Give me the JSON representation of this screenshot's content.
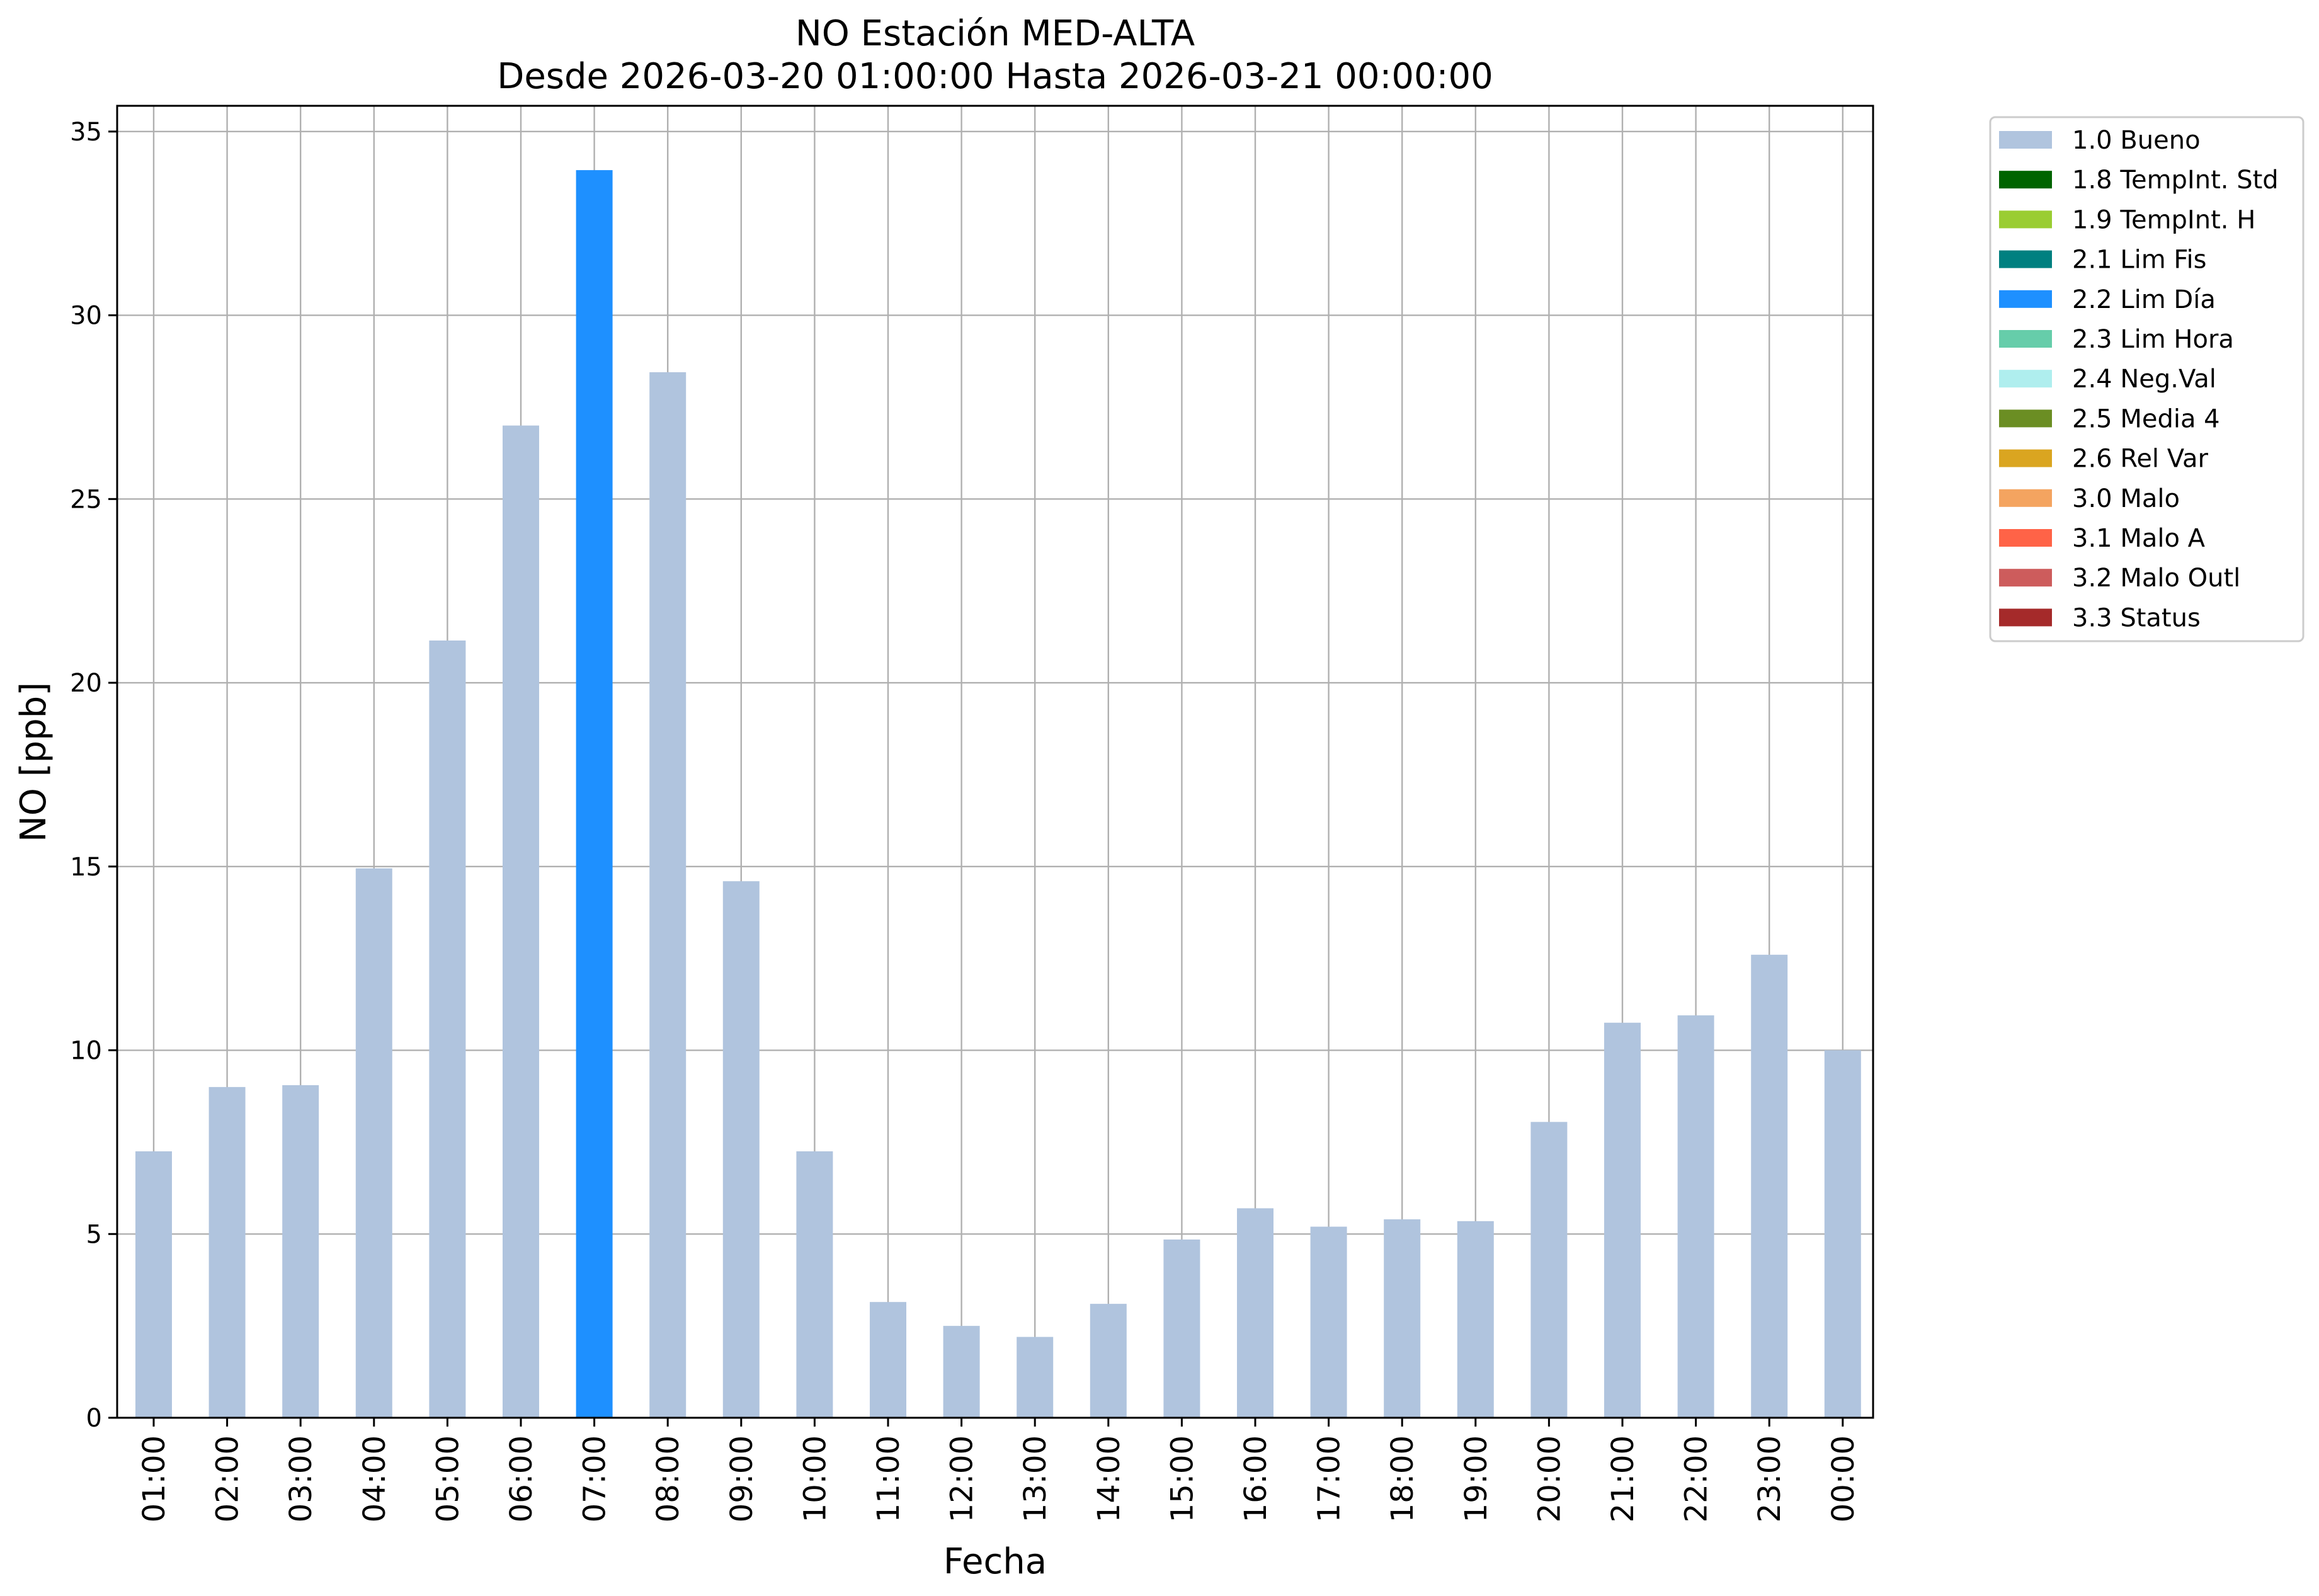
{
  "chart_data": {
    "type": "bar",
    "title": "NO Estación MED-ALTA",
    "subtitle": "Desde 2026-03-20 01:00:00 Hasta 2026-03-21 00:00:00",
    "xlabel": "Fecha",
    "ylabel": "NO [ppb]",
    "ylim": [
      0,
      35.7
    ],
    "yticks": [
      0,
      5,
      10,
      15,
      20,
      25,
      30,
      35
    ],
    "grid": true,
    "legend_position": "outside-top-right",
    "categories": [
      "01:00",
      "02:00",
      "03:00",
      "04:00",
      "05:00",
      "06:00",
      "07:00",
      "08:00",
      "09:00",
      "10:00",
      "11:00",
      "12:00",
      "13:00",
      "14:00",
      "15:00",
      "16:00",
      "17:00",
      "18:00",
      "19:00",
      "20:00",
      "21:00",
      "22:00",
      "23:00",
      "00:00"
    ],
    "values": [
      7.25,
      9.0,
      9.05,
      14.95,
      21.15,
      27.0,
      33.95,
      28.45,
      14.6,
      7.25,
      3.15,
      2.5,
      2.2,
      3.1,
      4.85,
      5.7,
      5.2,
      5.4,
      5.35,
      8.05,
      10.75,
      10.95,
      12.6,
      10.0
    ],
    "flags": [
      "1.0 Bueno",
      "1.0 Bueno",
      "1.0 Bueno",
      "1.0 Bueno",
      "1.0 Bueno",
      "1.0 Bueno",
      "2.2 Lim Día",
      "1.0 Bueno",
      "1.0 Bueno",
      "1.0 Bueno",
      "1.0 Bueno",
      "1.0 Bueno",
      "1.0 Bueno",
      "1.0 Bueno",
      "1.0 Bueno",
      "1.0 Bueno",
      "1.0 Bueno",
      "1.0 Bueno",
      "1.0 Bueno",
      "1.0 Bueno",
      "1.0 Bueno",
      "1.0 Bueno",
      "1.0 Bueno",
      "1.0 Bueno"
    ],
    "legend": [
      {
        "label": "1.0 Bueno",
        "color": "#b0c4de"
      },
      {
        "label": "1.8 TempInt. Std",
        "color": "#006400"
      },
      {
        "label": "1.9 TempInt. H",
        "color": "#9acd32"
      },
      {
        "label": "2.1 Lim Fis",
        "color": "#008080"
      },
      {
        "label": "2.2 Lim Día",
        "color": "#1e90ff"
      },
      {
        "label": "2.3 Lim Hora",
        "color": "#66cdaa"
      },
      {
        "label": "2.4 Neg.Val",
        "color": "#afeeee"
      },
      {
        "label": "2.5 Media 4",
        "color": "#6b8e23"
      },
      {
        "label": "2.6 Rel Var",
        "color": "#daa520"
      },
      {
        "label": "3.0 Malo",
        "color": "#f4a460"
      },
      {
        "label": "3.1 Malo A",
        "color": "#ff6347"
      },
      {
        "label": "3.2 Malo Outl",
        "color": "#cd5c5c"
      },
      {
        "label": "3.3 Status",
        "color": "#a52a2a"
      }
    ]
  }
}
